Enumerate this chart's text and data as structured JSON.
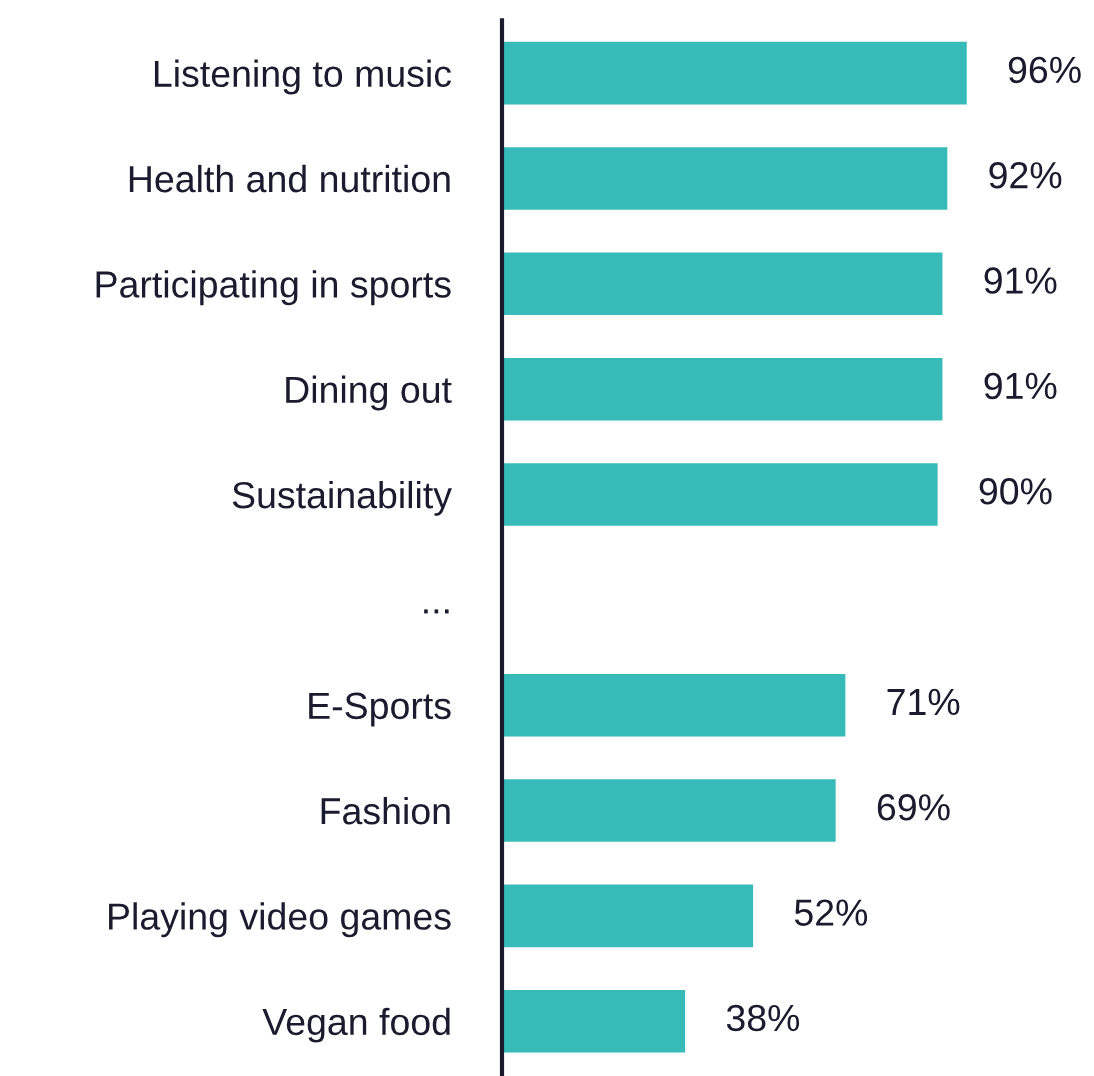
{
  "chart_data": {
    "type": "bar",
    "orientation": "horizontal",
    "data_labels": true,
    "color": "#36bbb8",
    "categories": [
      "Listening to music",
      "Health and nutrition",
      "Participating in sports",
      "Dining out",
      "Sustainability",
      "...",
      "E-Sports",
      "Fashion",
      "Playing video games",
      "Vegan food"
    ],
    "values": [
      96,
      92,
      91,
      91,
      90,
      null,
      71,
      69,
      52,
      38
    ],
    "value_labels": [
      "96%",
      "92%",
      "91%",
      "91%",
      "90%",
      null,
      "71%",
      "69%",
      "52%",
      "38%"
    ]
  }
}
